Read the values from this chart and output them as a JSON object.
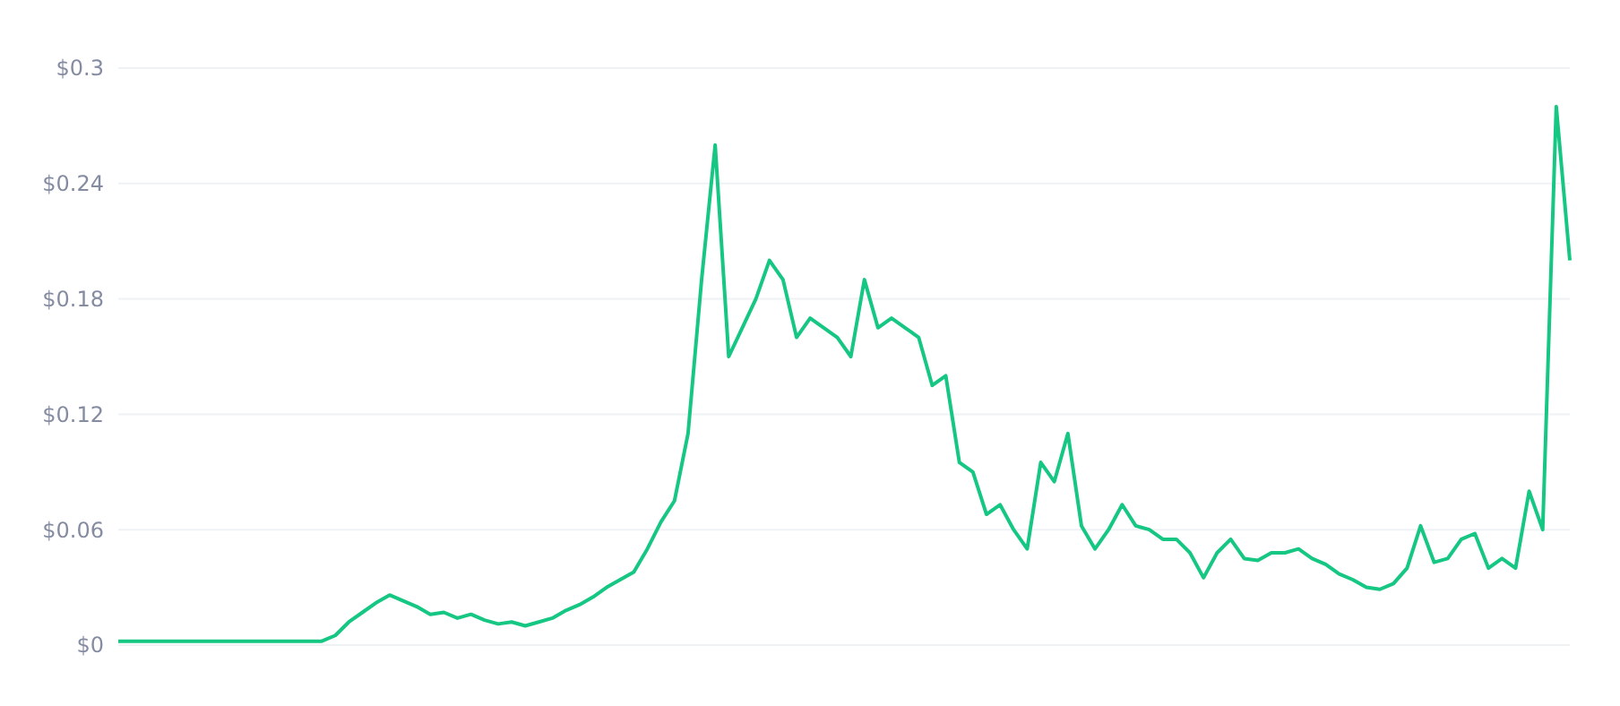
{
  "chart_data": {
    "type": "line",
    "categories": [
      null,
      null,
      null,
      null,
      null,
      null,
      null,
      null,
      null,
      null,
      null,
      null,
      null,
      null,
      null,
      null,
      null,
      null,
      null,
      null,
      null,
      null,
      null,
      null,
      null,
      null,
      null,
      null,
      null,
      null,
      null,
      null,
      null,
      null,
      null,
      null,
      null,
      null,
      null,
      null,
      null,
      null,
      null,
      null,
      null,
      null,
      null,
      null,
      null,
      null,
      null,
      null,
      null,
      null,
      null,
      null,
      null,
      null,
      null,
      null,
      null,
      null,
      null,
      null,
      null,
      null,
      null,
      null,
      null,
      null,
      null,
      null,
      null,
      null,
      null,
      null,
      null,
      null,
      null,
      null,
      null,
      null,
      null,
      null,
      null,
      null,
      null,
      null,
      null,
      null,
      null,
      null,
      null,
      null,
      null,
      null,
      null,
      null,
      null,
      null,
      null,
      null,
      null,
      null,
      null,
      null,
      null,
      null
    ],
    "series": [
      {
        "color": "#16c784",
        "values": [
          0.002,
          0.002,
          0.002,
          0.002,
          0.002,
          0.002,
          0.002,
          0.002,
          0.002,
          0.002,
          0.002,
          0.002,
          0.002,
          0.002,
          0.002,
          0.002,
          0.005,
          0.012,
          0.017,
          0.022,
          0.026,
          0.023,
          0.02,
          0.016,
          0.017,
          0.014,
          0.016,
          0.013,
          0.011,
          0.012,
          0.01,
          0.012,
          0.014,
          0.018,
          0.021,
          0.025,
          0.03,
          0.034,
          0.038,
          0.05,
          0.064,
          0.075,
          0.11,
          0.19,
          0.26,
          0.15,
          0.165,
          0.18,
          0.2,
          0.19,
          0.16,
          0.17,
          0.165,
          0.16,
          0.15,
          0.19,
          0.165,
          0.17,
          0.165,
          0.16,
          0.135,
          0.14,
          0.095,
          0.09,
          0.068,
          0.073,
          0.06,
          0.05,
          0.095,
          0.085,
          0.11,
          0.062,
          0.05,
          0.06,
          0.073,
          0.062,
          0.06,
          0.055,
          0.055,
          0.048,
          0.035,
          0.048,
          0.055,
          0.045,
          0.044,
          0.048,
          0.048,
          0.05,
          0.045,
          0.042,
          0.037,
          0.034,
          0.03,
          0.029,
          0.032,
          0.04,
          0.062,
          0.043,
          0.045,
          0.055,
          0.058,
          0.04,
          0.045,
          0.04,
          0.08,
          0.06,
          0.28,
          0.2
        ]
      }
    ],
    "ylim": [
      0,
      0.3
    ],
    "yticks": [
      {
        "value": 0,
        "label": "$0"
      },
      {
        "value": 0.06,
        "label": "$0.06"
      },
      {
        "value": 0.12,
        "label": "$0.12"
      },
      {
        "value": 0.18,
        "label": "$0.18"
      },
      {
        "value": 0.24,
        "label": "$0.24"
      },
      {
        "value": 0.3,
        "label": "$0.3"
      }
    ],
    "grid": "y",
    "tick_labels": "y",
    "marker": "none",
    "line_style": "solid"
  }
}
